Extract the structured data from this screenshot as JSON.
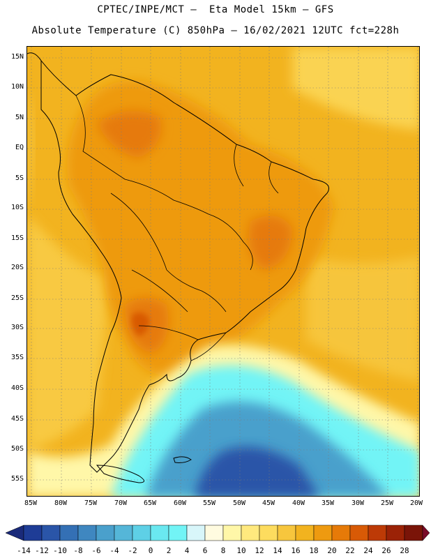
{
  "title_line1": "CPTEC/INPE/MCT –  Eta Model 15km – GFS",
  "title_line2": "Absolute Temperature (C) 850hPa – 16/02/2021 12UTC fct=228h",
  "lat_labels": [
    "15N",
    "10N",
    "5N",
    "EQ",
    "5S",
    "10S",
    "15S",
    "20S",
    "25S",
    "30S",
    "35S",
    "40S",
    "45S",
    "50S",
    "55S"
  ],
  "lon_labels": [
    "85W",
    "80W",
    "75W",
    "70W",
    "65W",
    "60W",
    "55W",
    "50W",
    "45W",
    "40W",
    "35W",
    "30W",
    "25W",
    "20W"
  ],
  "colorbar": {
    "ticks": [
      "-14",
      "-12",
      "-10",
      "-8",
      "-6",
      "-4",
      "-2",
      "0",
      "2",
      "4",
      "6",
      "8",
      "10",
      "12",
      "14",
      "16",
      "18",
      "20",
      "22",
      "24",
      "26",
      "28"
    ],
    "colors": [
      "#1e3c96",
      "#2a55a8",
      "#3470b5",
      "#3f87c0",
      "#4aa0cc",
      "#55b6d8",
      "#5ed0e6",
      "#6ae8f0",
      "#72f4f6",
      "#d8f6fa",
      "#fffbe0",
      "#fff7a8",
      "#ffe97e",
      "#fddc5e",
      "#f7c63d",
      "#f2b31f",
      "#ee9a10",
      "#e67a08",
      "#d85a06",
      "#bd3a06",
      "#9b2206",
      "#7a1408"
    ],
    "low_color": "#1a2a7a",
    "high_color": "#7a0a28"
  }
}
